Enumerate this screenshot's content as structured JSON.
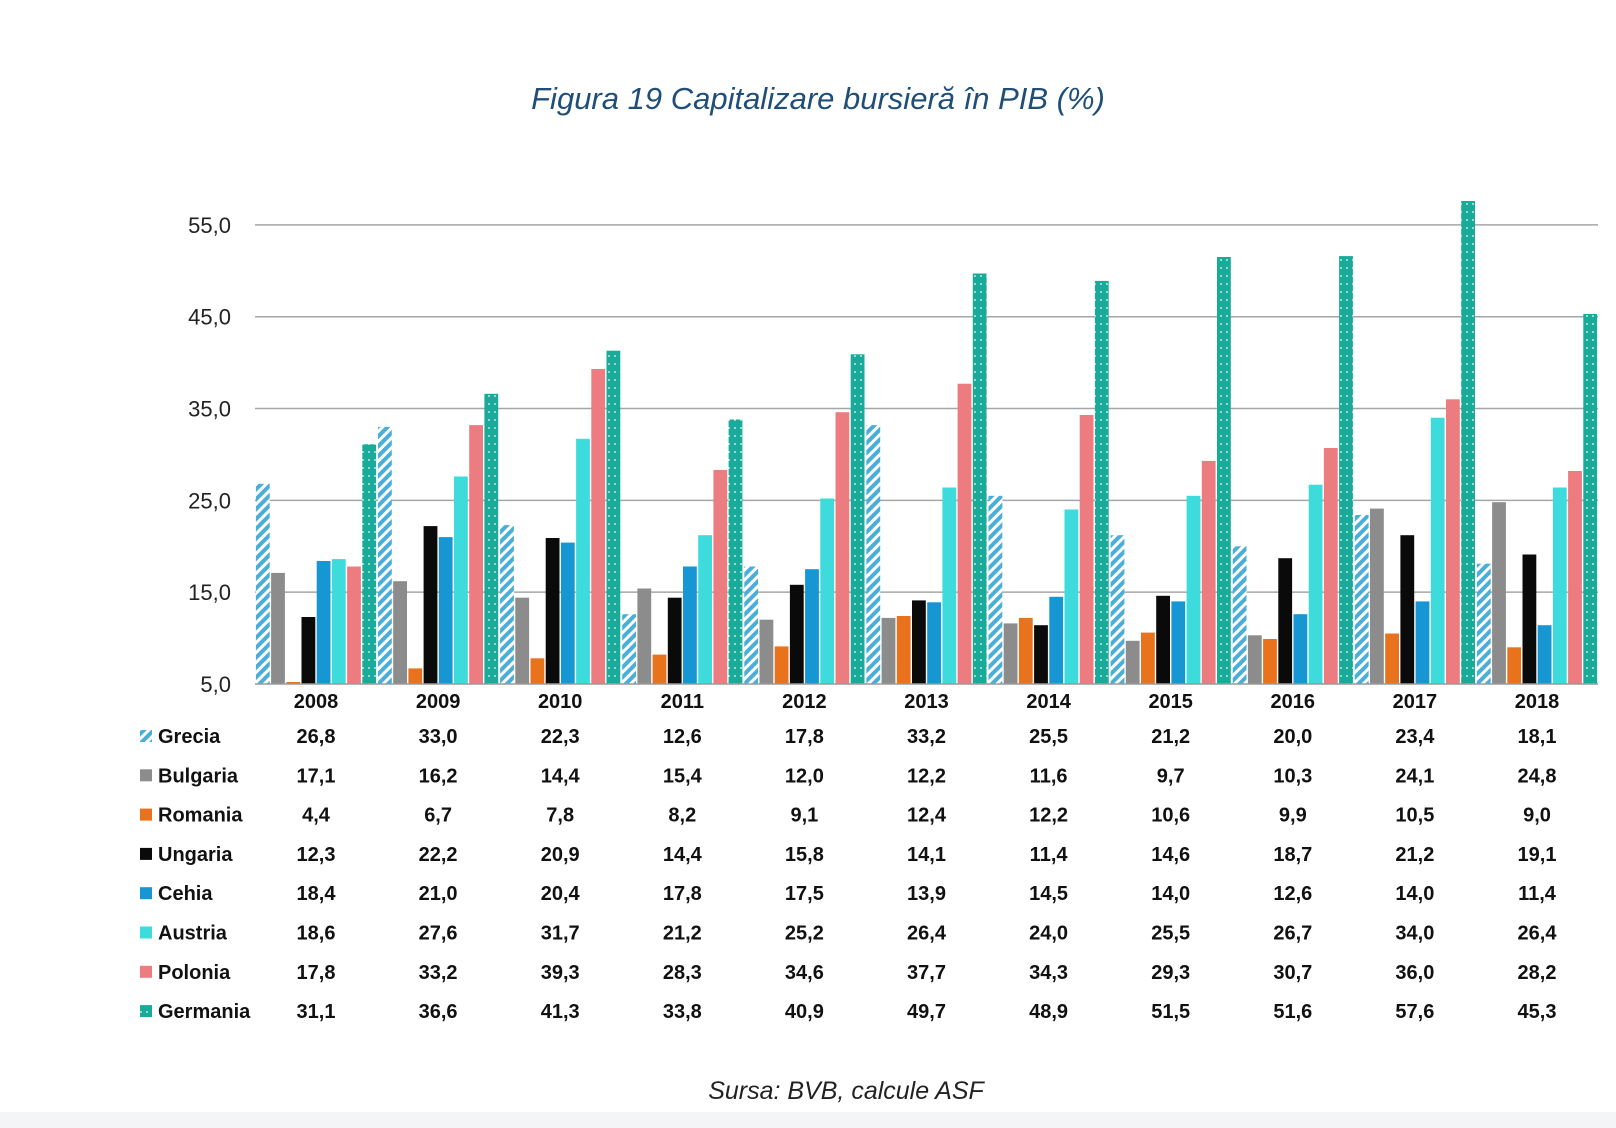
{
  "chart_data": {
    "type": "bar",
    "title": "Figura 19 Capitalizare bursieră în PIB (%)",
    "source": "Sursa: BVB, calcule ASF",
    "categories": [
      "2008",
      "2009",
      "2010",
      "2011",
      "2012",
      "2013",
      "2014",
      "2015",
      "2016",
      "2017",
      "2018"
    ],
    "ylim": [
      5,
      57.6
    ],
    "yticks": [
      {
        "value": 5,
        "label": "5,0"
      },
      {
        "value": 15,
        "label": "15,0"
      },
      {
        "value": 25,
        "label": "25,0"
      },
      {
        "value": 35,
        "label": "35,0"
      },
      {
        "value": 45,
        "label": "45,0"
      },
      {
        "value": 55,
        "label": "55,0"
      }
    ],
    "grid": true,
    "legend": "data-table",
    "series": [
      {
        "name": "Grecia",
        "color": "#4aaed9",
        "pattern": "hatch",
        "values": [
          26.8,
          33.0,
          22.3,
          12.6,
          17.8,
          33.2,
          25.5,
          21.2,
          20.0,
          23.4,
          18.1
        ],
        "labels": [
          "26,8",
          "33,0",
          "22,3",
          "12,6",
          "17,8",
          "33,2",
          "25,5",
          "21,2",
          "20,0",
          "23,4",
          "18,1"
        ]
      },
      {
        "name": "Bulgaria",
        "color": "#8c8c8c",
        "pattern": "solid",
        "values": [
          17.1,
          16.2,
          14.4,
          15.4,
          12.0,
          12.2,
          11.6,
          9.7,
          10.3,
          24.1,
          24.8
        ],
        "labels": [
          "17,1",
          "16,2",
          "14,4",
          "15,4",
          "12,0",
          "12,2",
          "11,6",
          "9,7",
          "10,3",
          "24,1",
          "24,8"
        ]
      },
      {
        "name": "Romania",
        "color": "#e8731c",
        "pattern": "solid",
        "values": [
          4.4,
          6.7,
          7.8,
          8.2,
          9.1,
          12.4,
          12.2,
          10.6,
          9.9,
          10.5,
          9.0
        ],
        "labels": [
          "4,4",
          "6,7",
          "7,8",
          "8,2",
          "9,1",
          "12,4",
          "12,2",
          "10,6",
          "9,9",
          "10,5",
          "9,0"
        ]
      },
      {
        "name": "Ungaria",
        "color": "#0a0a0a",
        "pattern": "solid",
        "values": [
          12.3,
          22.2,
          20.9,
          14.4,
          15.8,
          14.1,
          11.4,
          14.6,
          18.7,
          21.2,
          19.1
        ],
        "labels": [
          "12,3",
          "22,2",
          "20,9",
          "14,4",
          "15,8",
          "14,1",
          "11,4",
          "14,6",
          "18,7",
          "21,2",
          "19,1"
        ]
      },
      {
        "name": "Cehia",
        "color": "#1696d2",
        "pattern": "solid",
        "values": [
          18.4,
          21.0,
          20.4,
          17.8,
          17.5,
          13.9,
          14.5,
          14.0,
          12.6,
          14.0,
          11.4
        ],
        "labels": [
          "18,4",
          "21,0",
          "20,4",
          "17,8",
          "17,5",
          "13,9",
          "14,5",
          "14,0",
          "12,6",
          "14,0",
          "11,4"
        ]
      },
      {
        "name": "Austria",
        "color": "#3ddbdb",
        "pattern": "solid",
        "values": [
          18.6,
          27.6,
          31.7,
          21.2,
          25.2,
          26.4,
          24.0,
          25.5,
          26.7,
          34.0,
          26.4
        ],
        "labels": [
          "18,6",
          "27,6",
          "31,7",
          "21,2",
          "25,2",
          "26,4",
          "24,0",
          "25,5",
          "26,7",
          "34,0",
          "26,4"
        ]
      },
      {
        "name": "Polonia",
        "color": "#ec7c80",
        "pattern": "solid",
        "values": [
          17.8,
          33.2,
          39.3,
          28.3,
          34.6,
          37.7,
          34.3,
          29.3,
          30.7,
          36.0,
          28.2
        ],
        "labels": [
          "17,8",
          "33,2",
          "39,3",
          "28,3",
          "34,6",
          "37,7",
          "34,3",
          "29,3",
          "30,7",
          "36,0",
          "28,2"
        ]
      },
      {
        "name": "Germania",
        "color": "#1aaa99",
        "pattern": "dotted",
        "values": [
          31.1,
          36.6,
          41.3,
          33.8,
          40.9,
          49.7,
          48.9,
          51.5,
          51.6,
          57.6,
          45.3
        ],
        "labels": [
          "31,1",
          "36,6",
          "41,3",
          "33,8",
          "40,9",
          "49,7",
          "48,9",
          "51,5",
          "51,6",
          "57,6",
          "45,3"
        ]
      }
    ]
  }
}
